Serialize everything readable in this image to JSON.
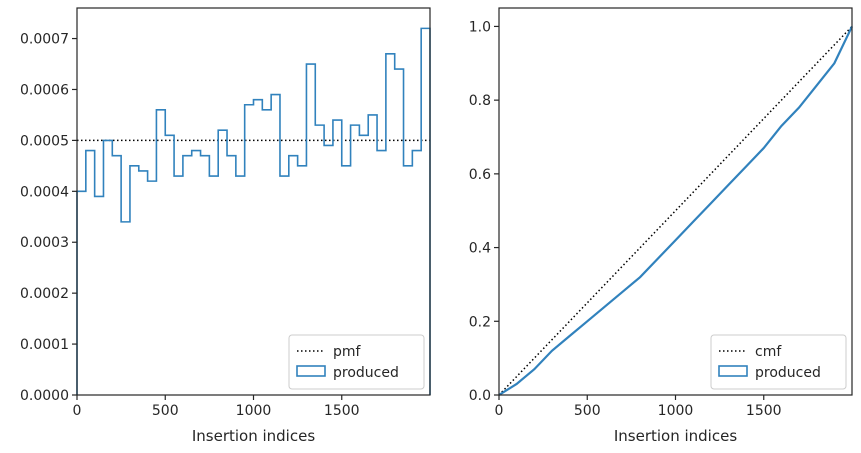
{
  "chart_data": [
    {
      "type": "histogram-step",
      "xlabel": "Insertion indices",
      "ylabel": "",
      "xlim": [
        0,
        2000
      ],
      "ylim": [
        0,
        0.00076
      ],
      "xticks": [
        0,
        500,
        1000,
        1500
      ],
      "xtick_labels": [
        "0",
        "500",
        "1000",
        "1500"
      ],
      "yticks": [
        0,
        0.0001,
        0.0002,
        0.0003,
        0.0004,
        0.0005,
        0.0006,
        0.0007
      ],
      "ytick_labels": [
        "0.0000",
        "0.0001",
        "0.0002",
        "0.0003",
        "0.0004",
        "0.0005",
        "0.0006",
        "0.0007"
      ],
      "grid": false,
      "legend": {
        "placement": "lower-right"
      },
      "reference": {
        "name": "pmf",
        "style": "dotted",
        "color": "#000000",
        "value": 0.0005
      },
      "series": [
        {
          "name": "produced",
          "color": "#3182bd",
          "bin_edges": [
            0,
            50,
            100,
            150,
            200,
            250,
            300,
            350,
            400,
            450,
            500,
            550,
            600,
            650,
            700,
            750,
            800,
            850,
            900,
            950,
            1000,
            1050,
            1100,
            1150,
            1200,
            1250,
            1300,
            1350,
            1400,
            1450,
            1500,
            1550,
            1600,
            1650,
            1700,
            1750,
            1800,
            1850,
            1900,
            1950,
            2000
          ],
          "values": [
            0.0004,
            0.00048,
            0.00039,
            0.0005,
            0.00047,
            0.00034,
            0.00045,
            0.00044,
            0.00042,
            0.00056,
            0.00051,
            0.00043,
            0.00047,
            0.00048,
            0.00047,
            0.00043,
            0.00052,
            0.00047,
            0.00043,
            0.00057,
            0.00058,
            0.00056,
            0.00059,
            0.00043,
            0.00047,
            0.00045,
            0.00065,
            0.00053,
            0.00049,
            0.00054,
            0.00045,
            0.00053,
            0.00051,
            0.00055,
            0.00048,
            0.00067,
            0.00064,
            0.00045,
            0.00048,
            0.00072
          ]
        }
      ]
    },
    {
      "type": "line",
      "xlabel": "Insertion indices",
      "ylabel": "",
      "xlim": [
        0,
        2000
      ],
      "ylim": [
        0,
        1.05
      ],
      "xticks": [
        0,
        500,
        1000,
        1500
      ],
      "xtick_labels": [
        "0",
        "500",
        "1000",
        "1500"
      ],
      "yticks": [
        0,
        0.2,
        0.4,
        0.6,
        0.8,
        1.0
      ],
      "ytick_labels": [
        "0.0",
        "0.2",
        "0.4",
        "0.6",
        "0.8",
        "1.0"
      ],
      "grid": false,
      "legend": {
        "placement": "lower-right"
      },
      "reference": {
        "name": "cmf",
        "style": "dotted",
        "color": "#000000",
        "x": [
          0,
          2000
        ],
        "y": [
          0,
          1.0
        ]
      },
      "series": [
        {
          "name": "produced",
          "color": "#3182bd",
          "x": [
            0,
            100,
            200,
            300,
            400,
            500,
            600,
            700,
            800,
            900,
            1000,
            1100,
            1200,
            1300,
            1400,
            1500,
            1600,
            1700,
            1800,
            1900,
            2000
          ],
          "y": [
            0,
            0.03,
            0.07,
            0.12,
            0.16,
            0.2,
            0.24,
            0.28,
            0.32,
            0.37,
            0.42,
            0.47,
            0.52,
            0.57,
            0.62,
            0.67,
            0.73,
            0.78,
            0.84,
            0.9,
            1.0
          ]
        }
      ]
    }
  ]
}
